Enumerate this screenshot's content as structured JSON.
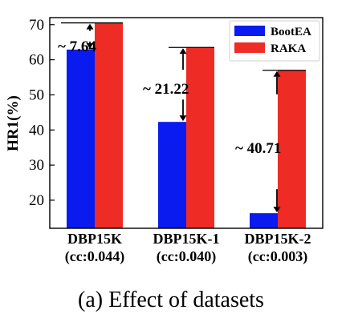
{
  "chart_data": {
    "type": "bar",
    "categories": [
      "DBP15K",
      "DBP15K-1",
      "DBP15K-2"
    ],
    "category_sublabels": [
      "(cc:0.044)",
      "(cc:0.040)",
      "(cc:0.003)"
    ],
    "series": [
      {
        "name": "BootEA",
        "color": "#0a1bf0",
        "values": [
          62.9,
          42.3,
          16.3
        ]
      },
      {
        "name": "RAKA",
        "color": "#ee2b24",
        "values": [
          70.5,
          63.5,
          57.0
        ]
      }
    ],
    "annotations": [
      "~ 7.64",
      "~ 21.22",
      "~ 40.71"
    ],
    "ylabel": "HR1(%)",
    "ylim": [
      12,
      72
    ],
    "yticks": [
      20,
      30,
      40,
      50,
      60,
      70
    ],
    "legend_position": "top-right",
    "caption": "(a) Effect of datasets"
  }
}
